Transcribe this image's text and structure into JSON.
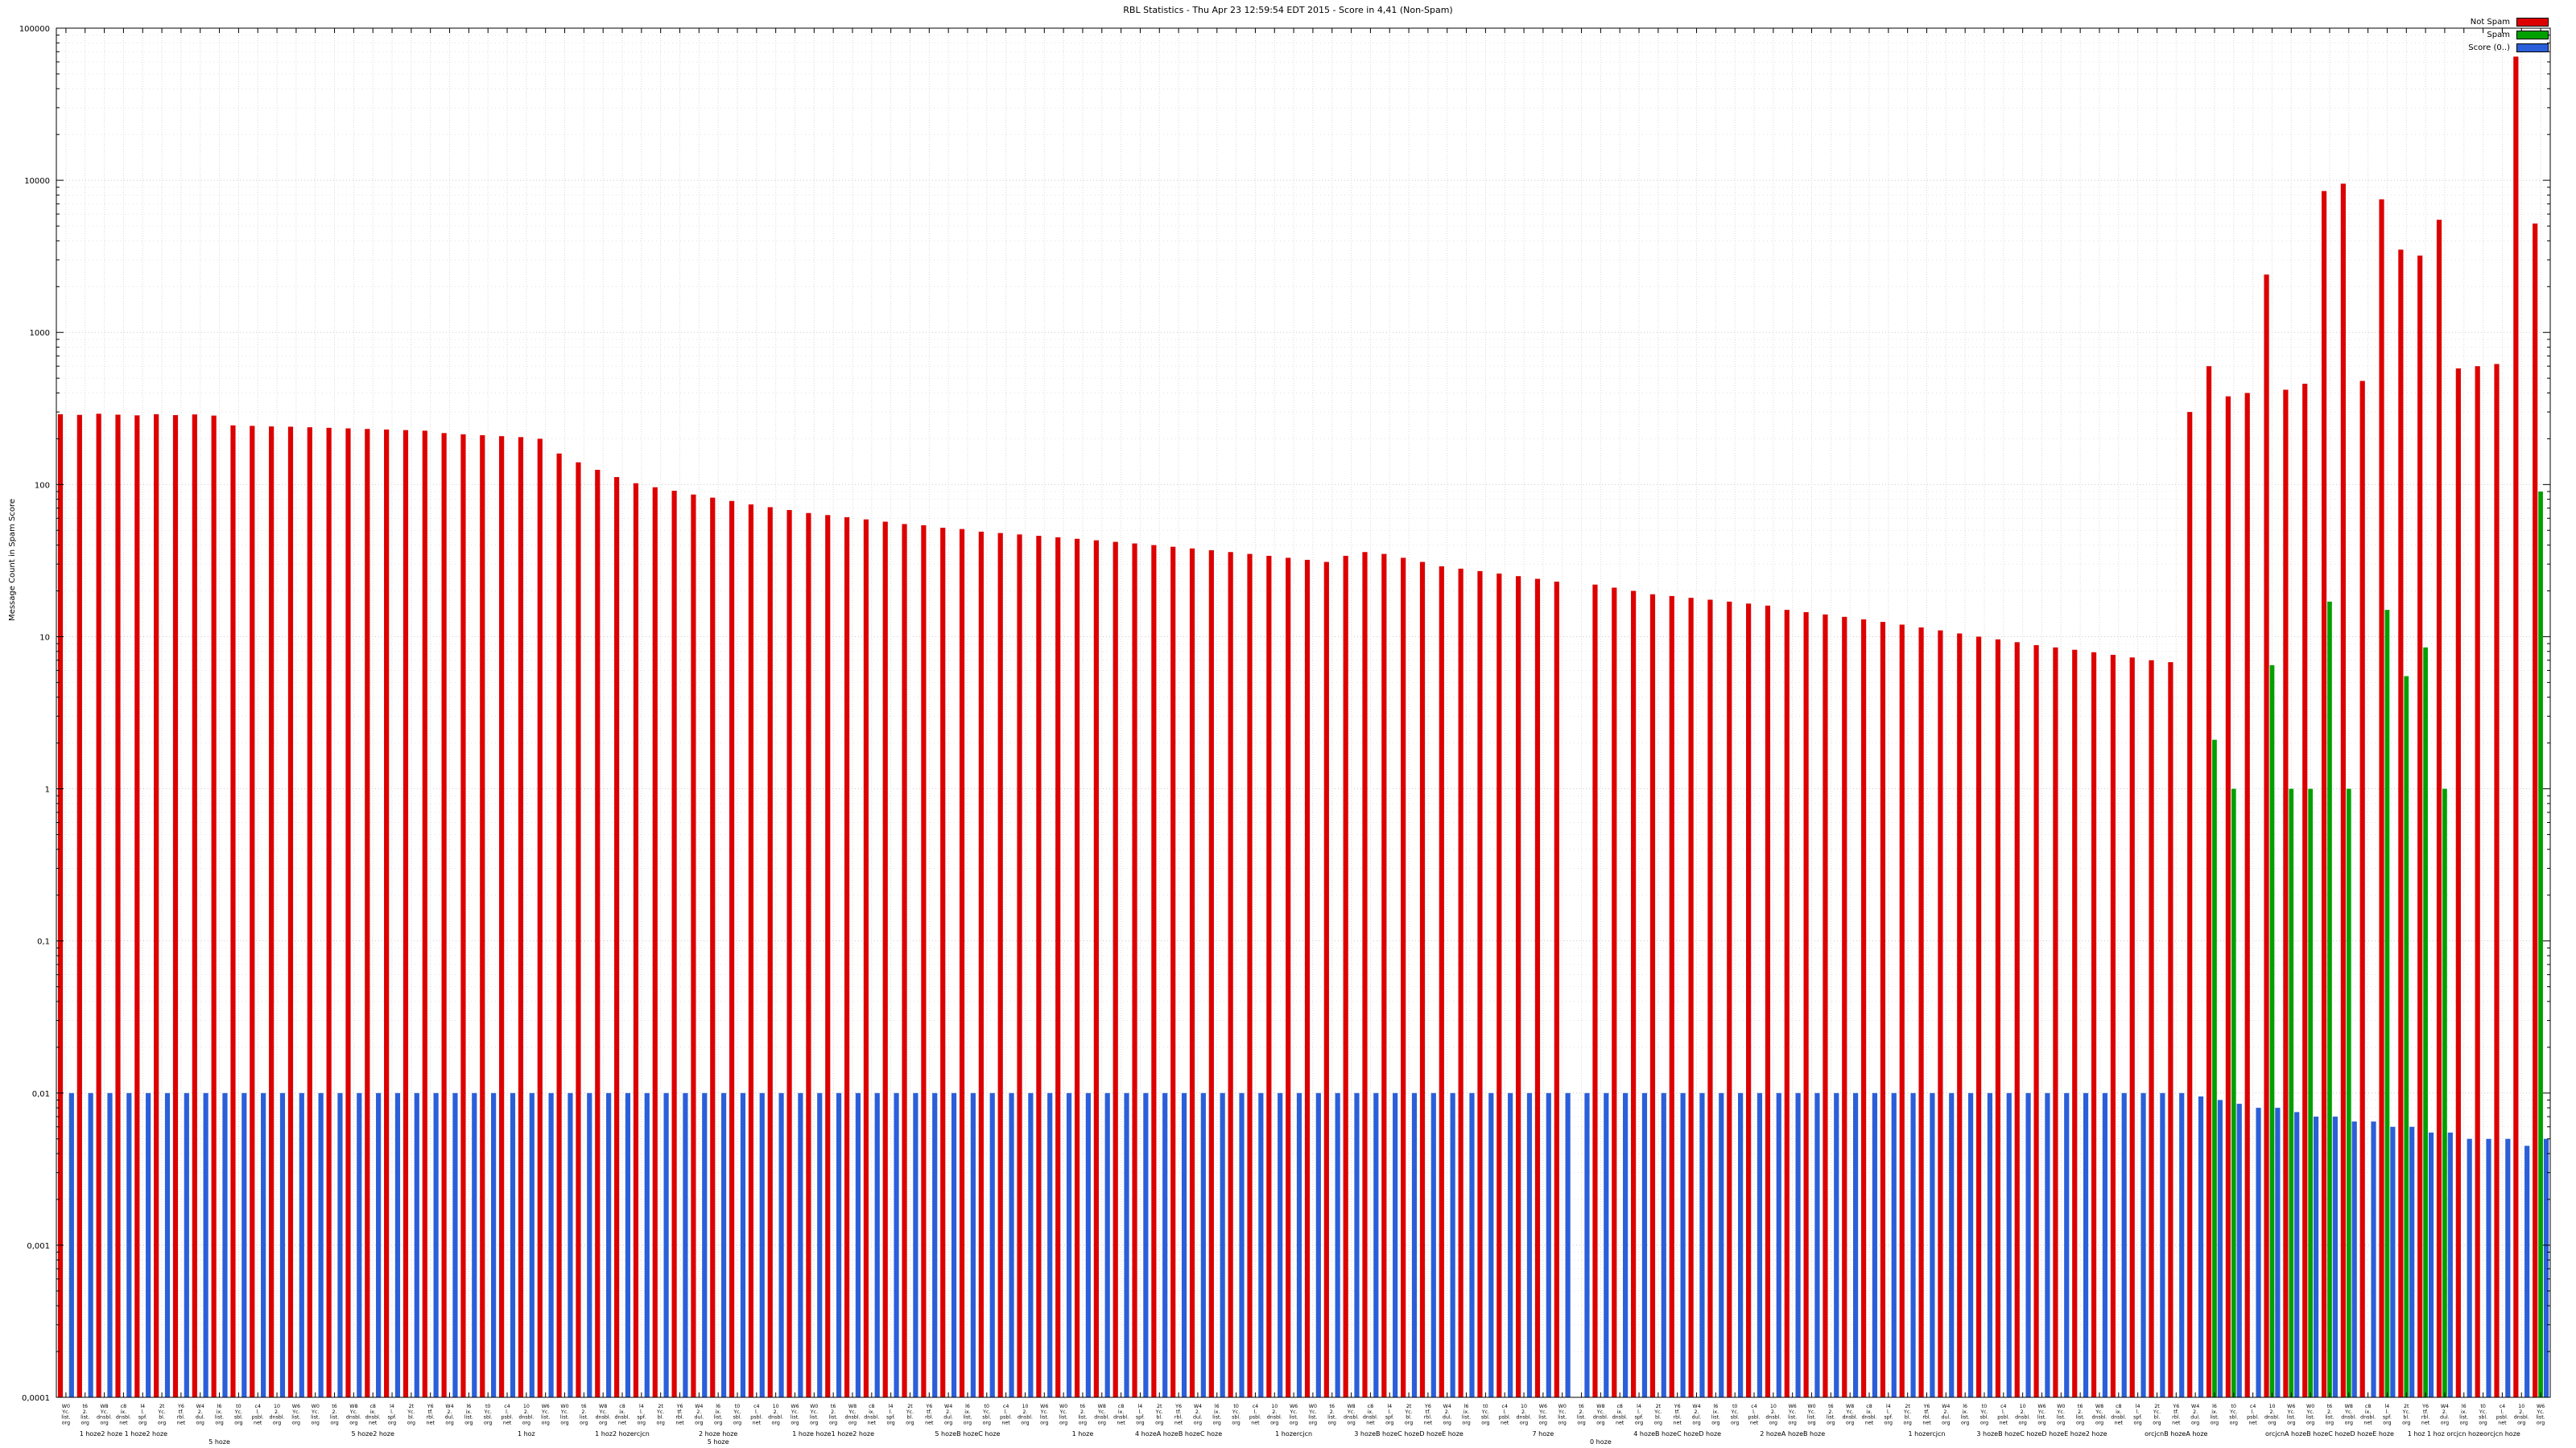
{
  "chart_data": {
    "type": "bar",
    "title": "RBL Statistics - Thu Apr 23 12:59:54 EDT 2015 - Score in 4,41 (Non-Spam)",
    "xlabel": "",
    "ylabel": "Message Count in Spam Score",
    "yscale": "log",
    "ylim": [
      0.0001,
      100000
    ],
    "grid": true,
    "legend_position": "top-right",
    "y_ticks": [
      {
        "value": 100000,
        "label": "100000"
      },
      {
        "value": 10000,
        "label": "10000"
      },
      {
        "value": 1000,
        "label": "1000"
      },
      {
        "value": 100,
        "label": "100"
      },
      {
        "value": 10,
        "label": "10"
      },
      {
        "value": 1,
        "label": "1"
      },
      {
        "value": 0.1,
        "label": "0,1"
      },
      {
        "value": 0.01,
        "label": "0,01"
      },
      {
        "value": 0.001,
        "label": "0,001"
      },
      {
        "value": 0.0001,
        "label": "0,0001"
      }
    ],
    "categories": [
      "W0\nYc.\nlist.\norg",
      "t6\n2.\nlist.\norg",
      "W8\nYc.\ndnsbl.\norg",
      "c8\nix.\ndnsbl.\nnet",
      "l4\nl.\nspf.\norg",
      "2t\nYc.\nbl.\norg",
      "Y6\ntf.\nrbl.\nnet",
      "W4\n2.\ndul.\norg",
      "l6\nix.\nlist.\norg",
      "t0\nYc.\nsbl.\norg",
      "c4\nl.\npsbl.\nnet",
      "10\n2.\ndnsbl.\norg",
      "W6\nYc.\nlist.\norg",
      "W0\nYc.\nlist.\norg",
      "t6\n2.\nlist.\norg",
      "W8\nYc.\ndnsbl.\norg",
      "c8\nix.\ndnsbl.\nnet",
      "l4\nl.\nspf.\norg",
      "2t\nYc.\nbl.\norg",
      "Y6\ntf.\nrbl.\nnet",
      "W4\n2.\ndul.\norg",
      "l6\nix.\nlist.\norg",
      "t0\nYc.\nsbl.\norg",
      "c4\nl.\npsbl.\nnet",
      "10\n2.\ndnsbl.\norg",
      "W6\nYc.\nlist.\norg",
      "W0\nYc.\nlist.\norg",
      "t6\n2.\nlist.\norg",
      "W8\nYc.\ndnsbl.\norg",
      "c8\nix.\ndnsbl.\nnet",
      "l4\nl.\nspf.\norg",
      "2t\nYc.\nbl.\norg",
      "Y6\ntf.\nrbl.\nnet",
      "W4\n2.\ndul.\norg",
      "l6\nix.\nlist.\norg",
      "t0\nYc.\nsbl.\norg",
      "c4\nl.\npsbl.\nnet",
      "10\n2.\ndnsbl.\norg",
      "W6\nYc.\nlist.\norg",
      "W0\nYc.\nlist.\norg",
      "t6\n2.\nlist.\norg",
      "W8\nYc.\ndnsbl.\norg",
      "c8\nix.\ndnsbl.\nnet",
      "l4\nl.\nspf.\norg",
      "2t\nYc.\nbl.\norg",
      "Y6\ntf.\nrbl.\nnet",
      "W4\n2.\ndul.\norg",
      "l6\nix.\nlist.\norg",
      "t0\nYc.\nsbl.\norg",
      "c4\nl.\npsbl.\nnet",
      "10\n2.\ndnsbl.\norg",
      "W6\nYc.\nlist.\norg",
      "W0\nYc.\nlist.\norg",
      "t6\n2.\nlist.\norg",
      "W8\nYc.\ndnsbl.\norg",
      "c8\nix.\ndnsbl.\nnet",
      "l4\nl.\nspf.\norg",
      "2t\nYc.\nbl.\norg",
      "Y6\ntf.\nrbl.\nnet",
      "W4\n2.\ndul.\norg",
      "l6\nix.\nlist.\norg",
      "t0\nYc.\nsbl.\norg",
      "c4\nl.\npsbl.\nnet",
      "10\n2.\ndnsbl.\norg",
      "W6\nYc.\nlist.\norg",
      "W0\nYc.\nlist.\norg",
      "t6\n2.\nlist.\norg",
      "W8\nYc.\ndnsbl.\norg",
      "c8\nix.\ndnsbl.\nnet",
      "l4\nl.\nspf.\norg",
      "2t\nYc.\nbl.\norg",
      "Y6\ntf.\nrbl.\nnet",
      "W4\n2.\ndul.\norg",
      "l6\nix.\nlist.\norg",
      "t0\nYc.\nsbl.\norg",
      "c4\nl.\npsbl.\nnet",
      "10\n2.\ndnsbl.\norg",
      "W6\nYc.\nlist.\norg",
      "W0\nYc.\nlist.\norg",
      "t6\n2.\nlist.\norg",
      "W8\nYc.\ndnsbl.\norg",
      "c8\nix.\ndnsbl.\nnet",
      "l4\nl.\nspf.\norg",
      "2t\nYc.\nbl.\norg",
      "Y6\ntf.\nrbl.\nnet",
      "W4\n2.\ndul.\norg",
      "l6\nix.\nlist.\norg",
      "t0\nYc.\nsbl.\norg",
      "c4\nl.\npsbl.\nnet",
      "10\n2.\ndnsbl.\norg",
      "W6\nYc.\nlist.\norg",
      "W0\nYc.\nlist.\norg",
      "t6\n2.\nlist.\norg",
      "W8\nYc.\ndnsbl.\norg",
      "c8\nix.\ndnsbl.\nnet",
      "l4\nl.\nspf.\norg",
      "2t\nYc.\nbl.\norg",
      "Y6\ntf.\nrbl.\nnet",
      "W4\n2.\ndul.\norg",
      "l6\nix.\nlist.\norg",
      "t0\nYc.\nsbl.\norg",
      "c4\nl.\npsbl.\nnet",
      "10\n2.\ndnsbl.\norg",
      "W6\nYc.\nlist.\norg",
      "W0\nYc.\nlist.\norg",
      "t6\n2.\nlist.\norg",
      "W8\nYc.\ndnsbl.\norg",
      "c8\nix.\ndnsbl.\nnet",
      "l4\nl.\nspf.\norg",
      "2t\nYc.\nbl.\norg",
      "Y6\ntf.\nrbl.\nnet",
      "W4\n2.\ndul.\norg",
      "l6\nix.\nlist.\norg",
      "t0\nYc.\nsbl.\norg",
      "c4\nl.\npsbl.\nnet",
      "10\n2.\ndnsbl.\norg",
      "W6\nYc.\nlist.\norg",
      "W0\nYc.\nlist.\norg",
      "t6\n2.\nlist.\norg",
      "W8\nYc.\ndnsbl.\norg",
      "c8\nix.\ndnsbl.\nnet",
      "l4\nl.\nspf.\norg",
      "2t\nYc.\nbl.\norg",
      "Y6\ntf.\nrbl.\nnet",
      "W4\n2.\ndul.\norg",
      "l6\nix.\nlist.\norg",
      "t0\nYc.\nsbl.\norg",
      "c4\nl.\npsbl.\nnet",
      "10\n2.\ndnsbl.\norg",
      "W6\nYc.\nlist.\norg"
    ],
    "series": [
      {
        "name": "Not Spam",
        "color": "#dd0000",
        "values": [
          290,
          287,
          292,
          288,
          285,
          290,
          286,
          289,
          284,
          245,
          243,
          241,
          240,
          238,
          236,
          234,
          232,
          230,
          228,
          226,
          218,
          214,
          211,
          208,
          205,
          200,
          160,
          140,
          125,
          112,
          102,
          96,
          91,
          86,
          82,
          78,
          74,
          71,
          68,
          65,
          63,
          61,
          59,
          57,
          55,
          54,
          52,
          51,
          49,
          48,
          47,
          46,
          45,
          44,
          43,
          42,
          41,
          40,
          39,
          38,
          37,
          36,
          35,
          34,
          33,
          32,
          31,
          34,
          36,
          35,
          33,
          31,
          29,
          28,
          27,
          26,
          25,
          24,
          23,
          null,
          22,
          21,
          20,
          19,
          18.5,
          18,
          17.5,
          17,
          16.5,
          16,
          15,
          14.5,
          14,
          13.5,
          13,
          12.5,
          12,
          11.5,
          11,
          10.5,
          10,
          9.6,
          9.2,
          8.8,
          8.5,
          8.2,
          7.9,
          7.6,
          7.3,
          7,
          6.8,
          300,
          600,
          380,
          400,
          2400,
          420,
          460,
          8500,
          9500,
          480,
          7500,
          3500,
          3200,
          5500,
          580,
          600,
          620,
          65000,
          5200
        ]
      },
      {
        "name": "Spam",
        "color": "#00a000",
        "values": [
          null,
          null,
          null,
          null,
          null,
          null,
          null,
          null,
          null,
          null,
          null,
          null,
          null,
          null,
          null,
          null,
          null,
          null,
          null,
          null,
          null,
          null,
          null,
          null,
          null,
          null,
          null,
          null,
          null,
          null,
          null,
          null,
          null,
          null,
          null,
          null,
          null,
          null,
          null,
          null,
          null,
          null,
          null,
          null,
          null,
          null,
          null,
          null,
          null,
          null,
          null,
          null,
          null,
          null,
          null,
          null,
          null,
          null,
          null,
          null,
          null,
          null,
          null,
          null,
          null,
          null,
          null,
          null,
          null,
          null,
          null,
          null,
          null,
          null,
          null,
          null,
          null,
          null,
          null,
          null,
          null,
          null,
          null,
          null,
          null,
          null,
          null,
          null,
          null,
          null,
          null,
          null,
          null,
          null,
          null,
          null,
          null,
          null,
          null,
          null,
          null,
          null,
          null,
          null,
          null,
          null,
          null,
          null,
          null,
          null,
          null,
          null,
          2.1,
          1,
          null,
          6.5,
          1,
          1,
          17,
          1,
          null,
          15,
          5.5,
          8.5,
          1,
          null,
          null,
          null,
          null,
          90
        ]
      },
      {
        "name": "Score (0..)",
        "color": "#2b5fd9",
        "values": [
          0.01,
          0.01,
          0.01,
          0.01,
          0.01,
          0.01,
          0.01,
          0.01,
          0.01,
          0.01,
          0.01,
          0.01,
          0.01,
          0.01,
          0.01,
          0.01,
          0.01,
          0.01,
          0.01,
          0.01,
          0.01,
          0.01,
          0.01,
          0.01,
          0.01,
          0.01,
          0.01,
          0.01,
          0.01,
          0.01,
          0.01,
          0.01,
          0.01,
          0.01,
          0.01,
          0.01,
          0.01,
          0.01,
          0.01,
          0.01,
          0.01,
          0.01,
          0.01,
          0.01,
          0.01,
          0.01,
          0.01,
          0.01,
          0.01,
          0.01,
          0.01,
          0.01,
          0.01,
          0.01,
          0.01,
          0.01,
          0.01,
          0.01,
          0.01,
          0.01,
          0.01,
          0.01,
          0.01,
          0.01,
          0.01,
          0.01,
          0.01,
          0.01,
          0.01,
          0.01,
          0.01,
          0.01,
          0.01,
          0.01,
          0.01,
          0.01,
          0.01,
          0.01,
          0.01,
          0.01,
          0.01,
          0.01,
          0.01,
          0.01,
          0.01,
          0.01,
          0.01,
          0.01,
          0.01,
          0.01,
          0.01,
          0.01,
          0.01,
          0.01,
          0.01,
          0.01,
          0.01,
          0.01,
          0.01,
          0.01,
          0.01,
          0.01,
          0.01,
          0.01,
          0.01,
          0.01,
          0.01,
          0.01,
          0.01,
          0.01,
          0.01,
          0.0095,
          0.009,
          0.0085,
          0.008,
          0.008,
          0.0075,
          0.007,
          0.007,
          0.0065,
          0.0065,
          0.006,
          0.006,
          0.0055,
          0.0055,
          0.005,
          0.005,
          0.005,
          0.0045,
          0.005
        ]
      }
    ],
    "group_labels": [
      {
        "index": 3,
        "text": "1 hoze2 hoze 1 hoze2 hoze"
      },
      {
        "index": 16,
        "text": "5 hoze2 hoze"
      },
      {
        "index": 24,
        "text": "1 hoz"
      },
      {
        "index": 29,
        "text": "1 hoz2 hozercjcn"
      },
      {
        "index": 34,
        "text": "2 hoze hoze"
      },
      {
        "index": 40,
        "text": "1 hoze hoze1 hoze2 hoze"
      },
      {
        "index": 47,
        "text": "5 hozeB hozeC hoze"
      },
      {
        "index": 53,
        "text": "1 hoze"
      },
      {
        "index": 58,
        "text": "4 hozeA hozeB hozeC hoze"
      },
      {
        "index": 64,
        "text": "1 hozercjcn"
      },
      {
        "index": 70,
        "text": "3 hozeB hozeC hozeD hozeE hoze"
      },
      {
        "index": 77,
        "text": "7 hoze"
      },
      {
        "index": 84,
        "text": "4 hozeB hozeC hozeD hoze"
      },
      {
        "index": 90,
        "text": "2 hozeA hozeB hoze"
      },
      {
        "index": 97,
        "text": "1 hozercjcn"
      },
      {
        "index": 103,
        "text": "3 hozeB hozeC hozeD hozeE hoze2 hoze"
      },
      {
        "index": 110,
        "text": "orcjcnB hozeA hoze"
      },
      {
        "index": 118,
        "text": "orcjcnA hozeB hozeC hozeD hozeE hoze"
      },
      {
        "index": 125,
        "text": "1 hoz 1 hoz orcjcn hozeorcjcn hoze"
      }
    ],
    "group_labels_row2": [
      {
        "index": 8,
        "text": "5 hoze"
      },
      {
        "index": 34,
        "text": "5 hoze"
      },
      {
        "index": 80,
        "text": "0 hoze"
      }
    ]
  }
}
